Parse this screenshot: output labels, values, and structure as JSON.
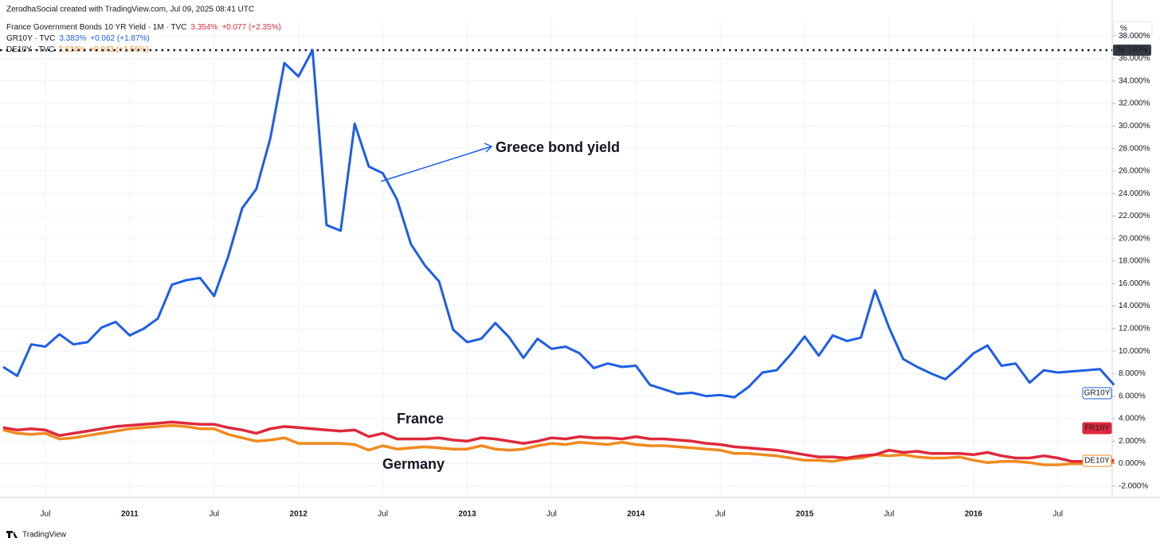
{
  "chart_data": {
    "type": "line",
    "credit": "ZerodhaSocial created with TradingView.com, Jul 09, 2025 08:41 UTC",
    "unit_label": "%",
    "footer": "TradingView",
    "categories": [
      null,
      null,
      null,
      "Jul",
      null,
      null,
      null,
      null,
      null,
      "2011",
      null,
      null,
      null,
      null,
      null,
      "Jul",
      null,
      null,
      null,
      null,
      null,
      "2012",
      null,
      null,
      null,
      null,
      null,
      "Jul",
      null,
      null,
      null,
      null,
      null,
      "2013",
      null,
      null,
      null,
      null,
      null,
      "Jul",
      null,
      null,
      null,
      null,
      null,
      "2014",
      null,
      null,
      null,
      null,
      null,
      "Jul",
      null,
      null,
      null,
      null,
      null,
      "2015",
      null,
      null,
      null,
      null,
      null,
      "Jul",
      null,
      null,
      null,
      null,
      null,
      "2016",
      null,
      null,
      null,
      null,
      null,
      "Jul",
      null,
      null,
      null,
      null
    ],
    "series": [
      {
        "name": "France Government Bonds 10 YR Yield · 1M · TVC",
        "symbol": "FR10Y",
        "last": "3.354%",
        "change": "+0.077 (+2.35%)",
        "color": "#e0283c",
        "values": [
          3.2,
          3.0,
          3.1,
          3.0,
          2.5,
          2.7,
          2.9,
          3.1,
          3.3,
          3.4,
          3.5,
          3.6,
          3.7,
          3.6,
          3.5,
          3.5,
          3.2,
          3.0,
          2.7,
          3.1,
          3.3,
          3.2,
          3.1,
          3.0,
          2.9,
          3.0,
          2.4,
          2.7,
          2.2,
          2.2,
          2.2,
          2.3,
          2.1,
          2.0,
          2.3,
          2.2,
          2.0,
          1.8,
          2.0,
          2.3,
          2.2,
          2.4,
          2.3,
          2.3,
          2.2,
          2.4,
          2.2,
          2.2,
          2.1,
          2.0,
          1.8,
          1.7,
          1.5,
          1.4,
          1.3,
          1.2,
          1.0,
          0.8,
          0.6,
          0.6,
          0.5,
          0.7,
          0.8,
          1.2,
          1.0,
          1.1,
          0.9,
          0.9,
          0.9,
          0.8,
          1.0,
          0.7,
          0.5,
          0.5,
          0.7,
          0.5,
          0.2,
          0.2,
          0.2,
          0.3
        ]
      },
      {
        "name": "GR10Y · TVC",
        "symbol": "GR10Y",
        "last": "3.383%",
        "change": "+0.062 (+1.87%)",
        "color": "#1c5ee6",
        "values": [
          8.6,
          7.8,
          10.6,
          10.4,
          11.5,
          10.6,
          10.8,
          12.1,
          12.6,
          11.4,
          12.0,
          12.9,
          15.9,
          16.3,
          16.5,
          14.9,
          18.4,
          22.7,
          24.4,
          28.9,
          35.6,
          34.4,
          36.74,
          21.2,
          20.7,
          30.2,
          26.4,
          25.8,
          23.5,
          19.5,
          17.6,
          16.2,
          11.9,
          10.8,
          11.1,
          12.5,
          11.2,
          9.4,
          11.1,
          10.2,
          10.4,
          9.8,
          8.5,
          8.9,
          8.6,
          8.7,
          7.0,
          6.6,
          6.2,
          6.3,
          6.0,
          6.1,
          5.9,
          6.8,
          8.1,
          8.3,
          9.7,
          11.3,
          9.6,
          11.4,
          10.9,
          11.2,
          15.4,
          12.1,
          9.3,
          8.6,
          8.0,
          7.5,
          8.6,
          9.8,
          10.5,
          8.7,
          8.9,
          7.2,
          8.3,
          8.1,
          8.2,
          8.3,
          8.4,
          7.0
        ]
      },
      {
        "name": "DE10Y · TVC",
        "symbol": "DE10Y",
        "last": "2.634%",
        "change": "+0.043 (+1.66%)",
        "color": "#f08a1e",
        "values": [
          3.0,
          2.7,
          2.6,
          2.7,
          2.2,
          2.3,
          2.5,
          2.7,
          2.9,
          3.1,
          3.2,
          3.3,
          3.4,
          3.3,
          3.1,
          3.1,
          2.6,
          2.3,
          2.0,
          2.1,
          2.3,
          1.8,
          1.8,
          1.8,
          1.8,
          1.7,
          1.2,
          1.6,
          1.3,
          1.4,
          1.5,
          1.4,
          1.3,
          1.3,
          1.6,
          1.3,
          1.2,
          1.3,
          1.6,
          1.8,
          1.7,
          1.9,
          1.8,
          1.7,
          1.9,
          1.7,
          1.6,
          1.6,
          1.5,
          1.4,
          1.3,
          1.2,
          0.9,
          0.9,
          0.8,
          0.7,
          0.5,
          0.3,
          0.3,
          0.2,
          0.4,
          0.5,
          0.8,
          0.7,
          0.8,
          0.6,
          0.5,
          0.5,
          0.6,
          0.3,
          0.1,
          0.2,
          0.2,
          0.1,
          -0.1,
          -0.1,
          0.0,
          0.0,
          0.1,
          0.1
        ]
      }
    ],
    "ylim": [
      -3,
      39.5
    ],
    "yticks": [
      {
        "value": -2,
        "label": "-2.000%"
      },
      {
        "value": 0,
        "label": "0.000%"
      },
      {
        "value": 2,
        "label": "2.000%"
      },
      {
        "value": 4,
        "label": "4.000%"
      },
      {
        "value": 6,
        "label": "6.000%"
      },
      {
        "value": 8,
        "label": "8.000%"
      },
      {
        "value": 10,
        "label": "10.000%"
      },
      {
        "value": 12,
        "label": "12.000%"
      },
      {
        "value": 14,
        "label": "14.000%"
      },
      {
        "value": 16,
        "label": "16.000%"
      },
      {
        "value": 18,
        "label": "18.000%"
      },
      {
        "value": 20,
        "label": "20.000%"
      },
      {
        "value": 22,
        "label": "22.000%"
      },
      {
        "value": 24,
        "label": "24.000%"
      },
      {
        "value": 26,
        "label": "26.000%"
      },
      {
        "value": 28,
        "label": "28.000%"
      },
      {
        "value": 30,
        "label": "30.000%"
      },
      {
        "value": 32,
        "label": "32.000%"
      },
      {
        "value": 34,
        "label": "34.000%"
      },
      {
        "value": 36,
        "label": "36.000%"
      },
      {
        "value": 38,
        "label": "38.000%"
      }
    ],
    "grid": true,
    "max_line": {
      "value": 36.74,
      "label": "36.740%"
    },
    "annotations": [
      {
        "text": "Greece bond yield",
        "color": "#1c5ee6"
      },
      {
        "text": "France",
        "color": "#e0283c"
      },
      {
        "text": "Germany",
        "color": "#f08a1e"
      }
    ]
  }
}
